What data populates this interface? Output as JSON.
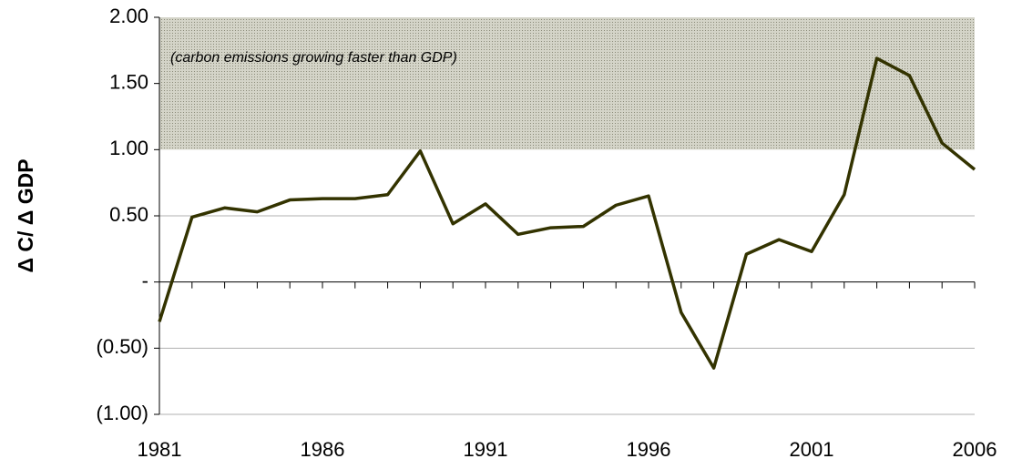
{
  "chart_data": {
    "type": "line",
    "ylabel": "Δ C/ Δ GDP",
    "annotation": "(carbon emissions growing faster than GDP)",
    "shade_ylim": [
      1,
      2
    ],
    "x": [
      1981,
      1982,
      1983,
      1984,
      1985,
      1986,
      1987,
      1988,
      1989,
      1990,
      1991,
      1992,
      1993,
      1994,
      1995,
      1996,
      1997,
      1998,
      1999,
      2000,
      2001,
      2002,
      2003,
      2004,
      2005,
      2006
    ],
    "series": [
      {
        "name": null,
        "color": "#333300",
        "values": [
          -0.3,
          0.49,
          0.56,
          0.53,
          0.62,
          0.63,
          0.63,
          0.66,
          0.99,
          0.44,
          0.59,
          0.36,
          0.41,
          0.42,
          0.58,
          0.65,
          -0.23,
          -0.65,
          0.21,
          0.32,
          0.23,
          0.66,
          1.69,
          1.56,
          1.05,
          0.85
        ]
      }
    ],
    "xlim": [
      1981,
      2006
    ],
    "xticks": [
      1981,
      1986,
      1991,
      1996,
      2001,
      2006
    ],
    "ylim": [
      -1,
      2
    ],
    "yticks": [
      {
        "value": -1,
        "label": "(1.00)"
      },
      {
        "value": -0.5,
        "label": "(0.50)"
      },
      {
        "value": 0,
        "label": "-"
      },
      {
        "value": 0.5,
        "label": "0.50"
      },
      {
        "value": 1,
        "label": "1.00"
      },
      {
        "value": 1.5,
        "label": "1.50"
      },
      {
        "value": 2,
        "label": "2.00"
      }
    ],
    "grid": true
  }
}
